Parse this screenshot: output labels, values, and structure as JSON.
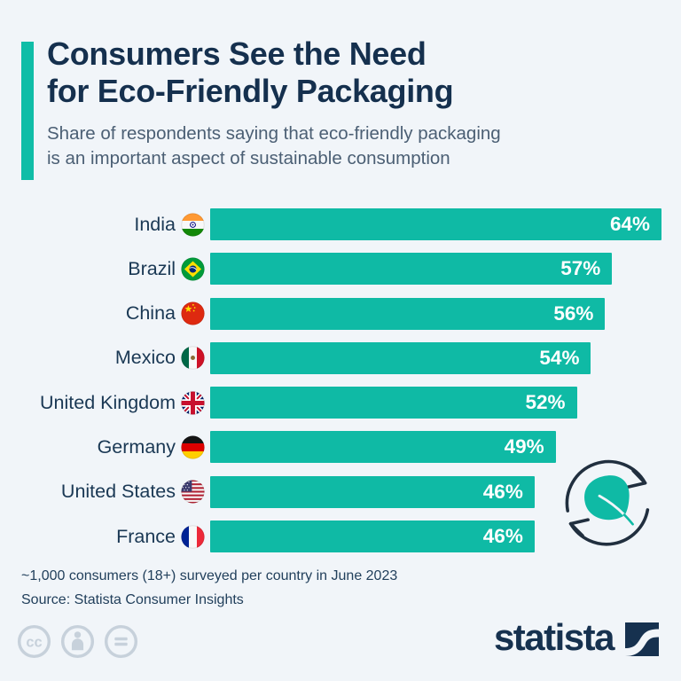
{
  "page": {
    "background": "#f1f5f9"
  },
  "header": {
    "title_line1": "Consumers See the Need",
    "title_line2": "for Eco-Friendly Packaging",
    "subtitle_line1": "Share of respondents saying that eco-friendly packaging",
    "subtitle_line2": "is an important aspect of sustainable consumption",
    "accent_color": "#10bda7"
  },
  "chart_data": {
    "type": "bar",
    "orientation": "horizontal",
    "title": "Share of respondents saying that eco-friendly packaging is an important aspect of sustainable consumption",
    "categories": [
      "India",
      "Brazil",
      "China",
      "Mexico",
      "United Kingdom",
      "Germany",
      "United States",
      "France"
    ],
    "values": [
      64,
      57,
      56,
      54,
      52,
      49,
      46,
      46
    ],
    "value_labels": [
      "64%",
      "57%",
      "56%",
      "54%",
      "52%",
      "49%",
      "46%",
      "46%"
    ],
    "unit": "%",
    "xlim": [
      0,
      64
    ],
    "flags": [
      "india",
      "brazil",
      "china",
      "mexico",
      "uk",
      "germany",
      "us",
      "france"
    ],
    "bar_color": "#0fbaa5",
    "value_label_color": "#ffffff",
    "label_color": "#1a3854",
    "grid": false,
    "legend": false
  },
  "decorations": {
    "eco_icon": "leaf-recycle-icon",
    "leaf_color": "#0fbaa5",
    "arrow_color": "#212f3f"
  },
  "footnotes": {
    "note": "~1,000 consumers (18+) surveyed per country in June 2023",
    "source": "Source: Statista Consumer Insights"
  },
  "footer": {
    "license_icons": [
      "cc-icon",
      "by-person-icon",
      "nd-equals-icon"
    ],
    "license_color": "#c7d1db",
    "brand_text": "statista",
    "brand_color": "#16314f"
  }
}
